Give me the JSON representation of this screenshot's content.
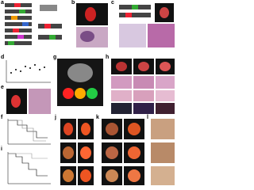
{
  "panels": [
    {
      "label": "a"
    },
    {
      "label": "b"
    },
    {
      "label": "c"
    },
    {
      "label": "d"
    },
    {
      "label": "e"
    },
    {
      "label": "f"
    },
    {
      "label": "g"
    },
    {
      "label": "h"
    },
    {
      "label": "i"
    },
    {
      "label": "j"
    },
    {
      "label": "k"
    },
    {
      "label": "l"
    }
  ]
}
